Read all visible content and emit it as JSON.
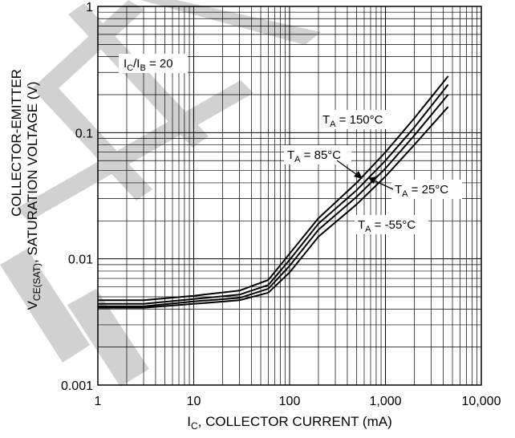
{
  "chart_data": {
    "type": "line",
    "x_scale": "log",
    "y_scale": "log",
    "xlim": [
      1,
      10000
    ],
    "ylim": [
      0.001,
      1
    ],
    "grid": true,
    "x_ticks": [
      {
        "value": 1,
        "label": "1"
      },
      {
        "value": 10,
        "label": "10"
      },
      {
        "value": 100,
        "label": "100"
      },
      {
        "value": 1000,
        "label": "1,000"
      },
      {
        "value": 10000,
        "label": "10,000"
      }
    ],
    "y_ticks": [
      {
        "value": 0.001,
        "label": "0.001"
      },
      {
        "value": 0.01,
        "label": "0.01"
      },
      {
        "value": 0.1,
        "label": "0.1"
      },
      {
        "value": 1,
        "label": "1"
      }
    ],
    "xlabel": {
      "main": "I",
      "sub": "C",
      "rest": ", COLLECTOR CURRENT (mA)"
    },
    "ylabel": {
      "line1": "COLLECTOR-EMITTER",
      "line2_prefix": "V",
      "line2_sub": "CE(SAT)",
      "line2_rest": ", SATURATION VOLTAGE (V)"
    },
    "annotation": {
      "a": "I",
      "a_sub": "C",
      "b": "/I",
      "b_sub": "B",
      "rest": " = 20"
    },
    "series": [
      {
        "name": "T_A = 150°C",
        "label_main": "T",
        "label_sub": "A",
        "label_rest": " = 150°C",
        "x": [
          1,
          3,
          10,
          30,
          60,
          100,
          200,
          500,
          1000,
          2000,
          4500
        ],
        "y": [
          0.0047,
          0.0047,
          0.0051,
          0.0056,
          0.0068,
          0.011,
          0.021,
          0.04,
          0.07,
          0.13,
          0.28
        ]
      },
      {
        "name": "T_A = 85°C",
        "label_main": "T",
        "label_sub": "A",
        "label_rest": " = 85°C",
        "x": [
          1,
          3,
          10,
          30,
          60,
          100,
          200,
          500,
          1000,
          2000,
          4500
        ],
        "y": [
          0.0044,
          0.0044,
          0.0048,
          0.0052,
          0.0062,
          0.0098,
          0.019,
          0.035,
          0.06,
          0.11,
          0.24
        ]
      },
      {
        "name": "T_A = 25°C",
        "label_main": "T",
        "label_sub": "A",
        "label_rest": " = 25°C",
        "x": [
          1,
          3,
          10,
          30,
          60,
          100,
          200,
          500,
          1000,
          2000,
          4500
        ],
        "y": [
          0.0042,
          0.0042,
          0.0046,
          0.0049,
          0.0058,
          0.0088,
          0.017,
          0.031,
          0.052,
          0.095,
          0.2
        ]
      },
      {
        "name": "T_A = -55°C",
        "label_main": "T",
        "label_sub": "A",
        "label_rest": " = -55°C",
        "x": [
          1,
          3,
          10,
          30,
          60,
          100,
          200,
          500,
          1000,
          2000,
          4500
        ],
        "y": [
          0.0041,
          0.0041,
          0.0044,
          0.0047,
          0.0054,
          0.0078,
          0.015,
          0.027,
          0.045,
          0.08,
          0.16
        ]
      }
    ]
  }
}
